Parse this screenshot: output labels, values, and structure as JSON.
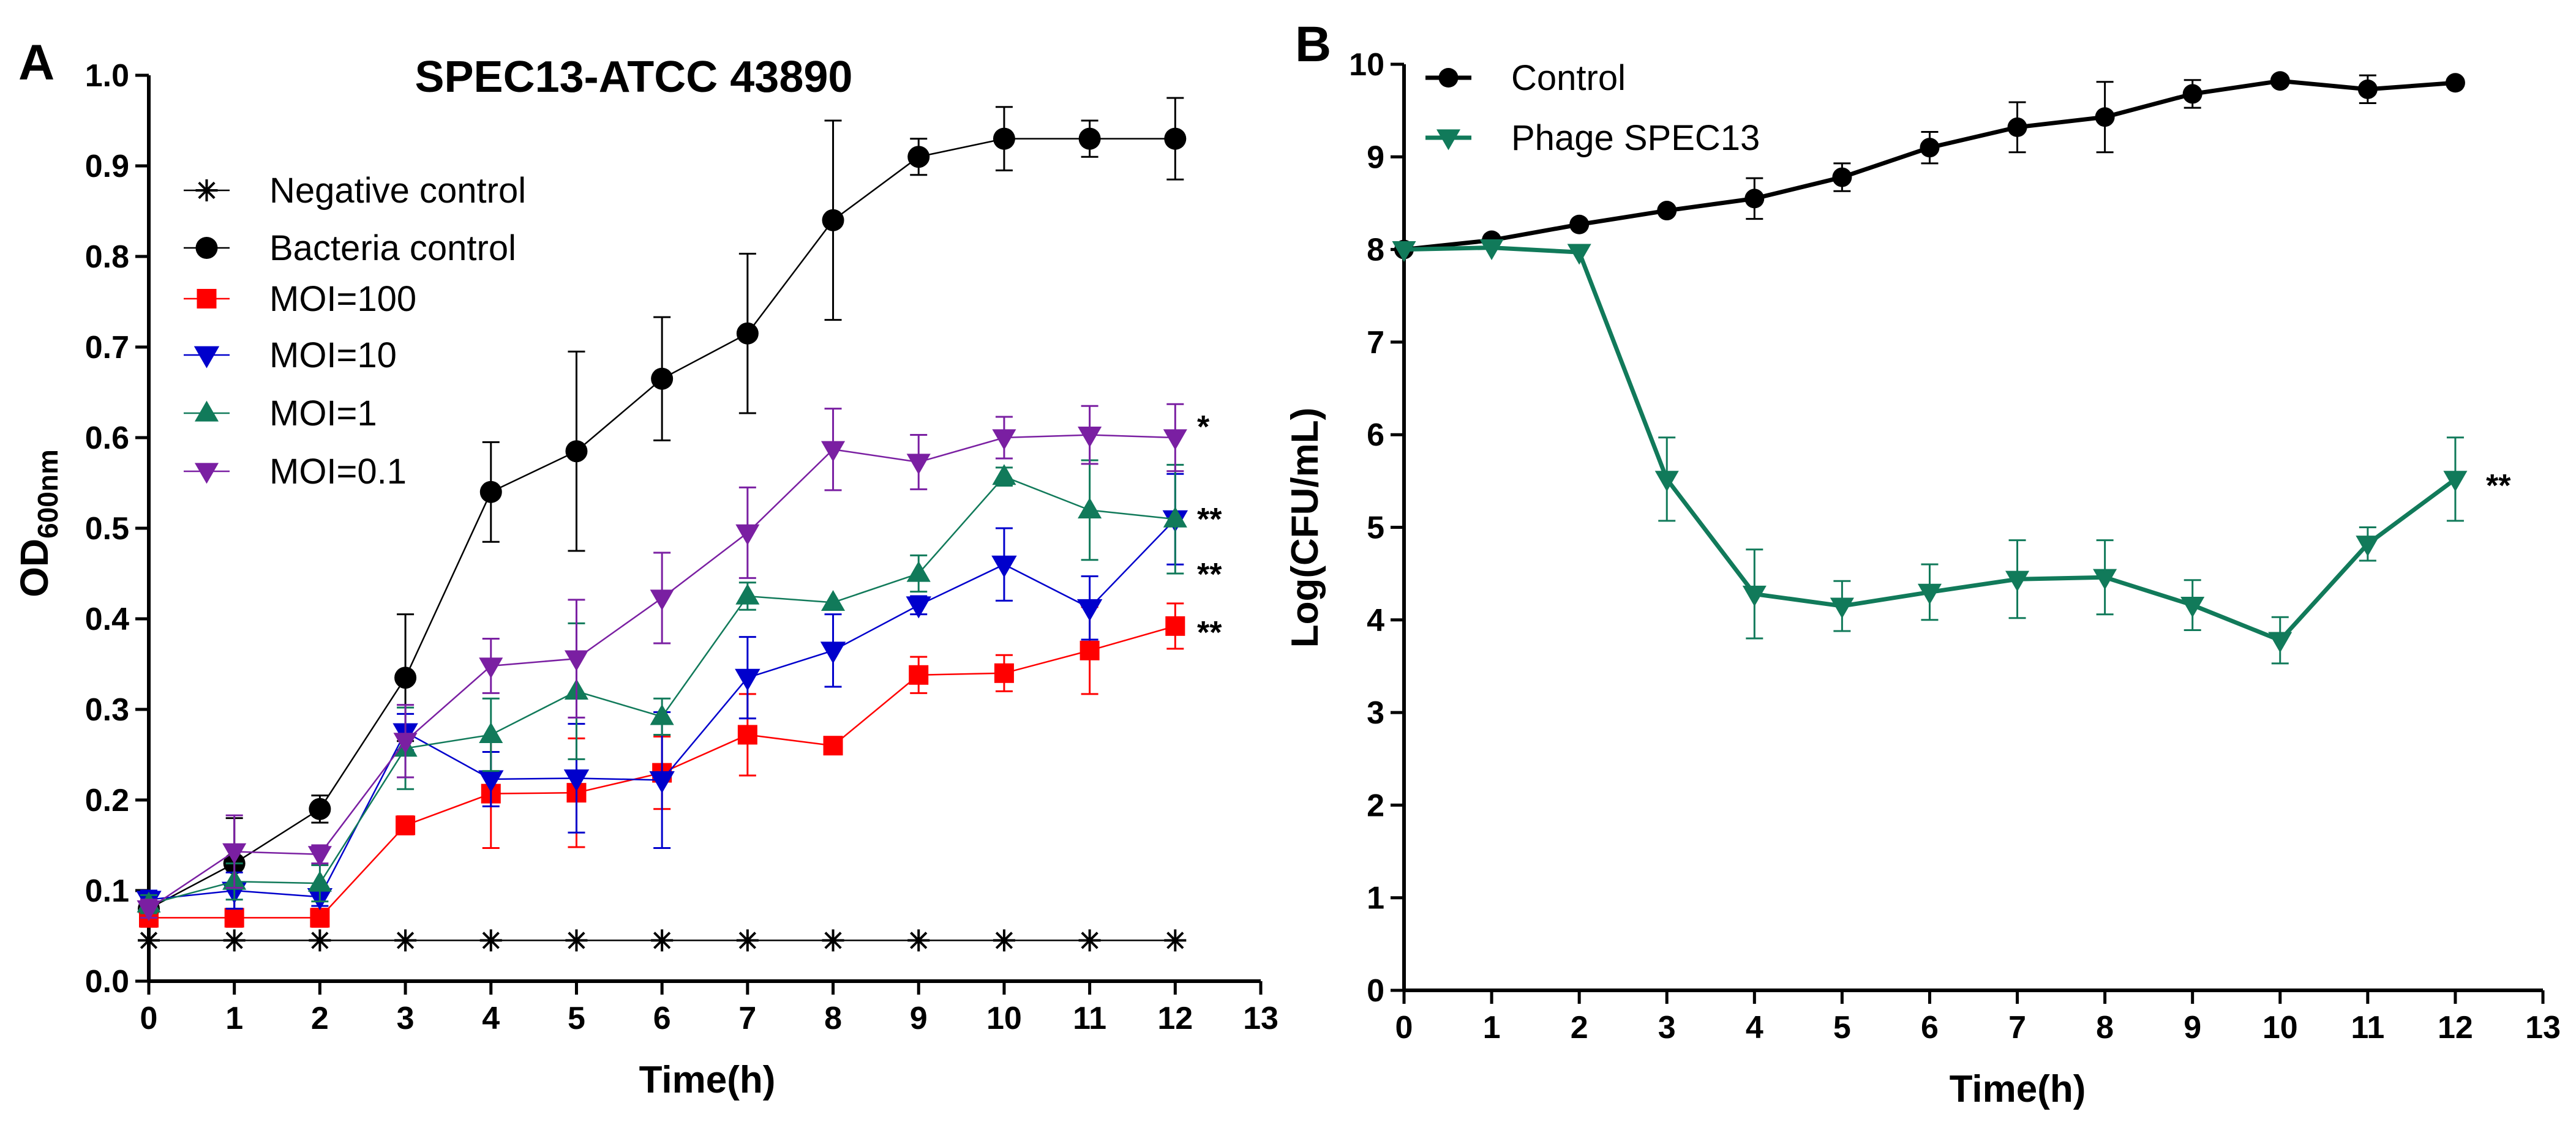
{
  "chart_data": [
    {
      "panel_label": "A",
      "type": "line",
      "title": "SPEC13-ATCC 43890",
      "xlabel": "Time(h)",
      "ylabel_main": "OD",
      "ylabel_sub": "600nm",
      "xlim": [
        0,
        13
      ],
      "ylim": [
        0,
        1.0
      ],
      "xticks": [
        0,
        1,
        2,
        3,
        4,
        5,
        6,
        7,
        8,
        9,
        10,
        11,
        12,
        13
      ],
      "yticks": [
        0.0,
        0.1,
        0.2,
        0.3,
        0.4,
        0.5,
        0.6,
        0.7,
        0.8,
        0.9,
        1.0
      ],
      "ytick_labels": [
        "0.0",
        "0.1",
        "0.2",
        "0.3",
        "0.4",
        "0.5",
        "0.6",
        "0.7",
        "0.8",
        "0.9",
        "1.0"
      ],
      "x": [
        0,
        1,
        2,
        3,
        4,
        5,
        6,
        7,
        8,
        9,
        10,
        11,
        12
      ],
      "legend_position": "top-left",
      "series": [
        {
          "name": "Negative control",
          "color": "#000000",
          "marker": "star",
          "values": [
            0.045,
            0.045,
            0.045,
            0.045,
            0.045,
            0.045,
            0.045,
            0.045,
            0.045,
            0.045,
            0.045,
            0.045,
            0.045
          ],
          "errors": [
            0,
            0,
            0,
            0,
            0,
            0,
            0,
            0,
            0,
            0,
            0,
            0,
            0
          ]
        },
        {
          "name": "Bacteria control",
          "color": "#000000",
          "marker": "circle",
          "values": [
            0.08,
            0.13,
            0.19,
            0.335,
            0.54,
            0.585,
            0.665,
            0.715,
            0.84,
            0.91,
            0.93,
            0.93,
            0.93
          ],
          "errors": [
            0.01,
            0.05,
            0.015,
            0.07,
            0.055,
            0.11,
            0.068,
            0.088,
            0.11,
            0.02,
            0.035,
            0.02,
            0.045
          ]
        },
        {
          "name": "MOI=100",
          "color": "#ff0000",
          "marker": "square",
          "values": [
            0.07,
            0.07,
            0.07,
            0.172,
            0.207,
            0.208,
            0.23,
            0.272,
            0.26,
            0.338,
            0.34,
            0.365,
            0.392
          ],
          "errors": [
            0.01,
            0.01,
            0.01,
            0.01,
            0.06,
            0.06,
            0.04,
            0.045,
            0,
            0.02,
            0.02,
            0.048,
            0.025
          ]
        },
        {
          "name": "MOI=10",
          "color": "#0000cc",
          "marker": "triangle-down",
          "values": [
            0.09,
            0.1,
            0.093,
            0.275,
            0.223,
            0.224,
            0.222,
            0.335,
            0.365,
            0.415,
            0.46,
            0.412,
            0.51
          ],
          "errors": [
            0.01,
            0.02,
            0.01,
            0.02,
            0.03,
            0.06,
            0.075,
            0.045,
            0.04,
            0.01,
            0.04,
            0.035,
            0.05
          ]
        },
        {
          "name": "MOI=1",
          "color": "#117a5a",
          "marker": "triangle-up",
          "values": [
            0.085,
            0.11,
            0.108,
            0.257,
            0.272,
            0.32,
            0.292,
            0.425,
            0.418,
            0.45,
            0.557,
            0.52,
            0.51
          ],
          "errors": [
            0.01,
            0.02,
            0.02,
            0.045,
            0.04,
            0.075,
            0.02,
            0.015,
            0,
            0.02,
            0.01,
            0.055,
            0.06
          ]
        },
        {
          "name": "MOI=0.1",
          "color": "#7a1fa2",
          "marker": "triangle-down",
          "values": [
            0.08,
            0.143,
            0.14,
            0.265,
            0.348,
            0.356,
            0.423,
            0.495,
            0.587,
            0.573,
            0.6,
            0.603,
            0.6
          ],
          "errors": [
            0.01,
            0.04,
            0.01,
            0.04,
            0.03,
            0.065,
            0.05,
            0.05,
            0.045,
            0.03,
            0.023,
            0.032,
            0.037
          ]
        }
      ],
      "annotations": [
        {
          "text": "*",
          "series": "MOI=0.1"
        },
        {
          "text": "**",
          "series": "MOI=1"
        },
        {
          "text": "**",
          "series": "MOI=10"
        },
        {
          "text": "**",
          "series": "MOI=100"
        }
      ]
    },
    {
      "panel_label": "B",
      "type": "line",
      "title": "",
      "xlabel": "Time(h)",
      "ylabel_main": "Log(CFU/mL)",
      "ylabel_sub": "",
      "xlim": [
        0,
        13
      ],
      "ylim": [
        0,
        10
      ],
      "xticks": [
        0,
        1,
        2,
        3,
        4,
        5,
        6,
        7,
        8,
        9,
        10,
        11,
        12,
        13
      ],
      "yticks": [
        0,
        1,
        2,
        3,
        4,
        5,
        6,
        7,
        8,
        9,
        10
      ],
      "ytick_labels": [
        "0",
        "1",
        "2",
        "3",
        "4",
        "5",
        "6",
        "7",
        "8",
        "9",
        "10"
      ],
      "x": [
        0,
        1,
        2,
        3,
        4,
        5,
        6,
        7,
        8,
        9,
        10,
        11,
        12
      ],
      "legend_position": "top-left",
      "series": [
        {
          "name": "Control",
          "color": "#000000",
          "marker": "circle",
          "values": [
            8.0,
            8.1,
            8.27,
            8.42,
            8.55,
            8.78,
            9.1,
            9.32,
            9.43,
            9.68,
            9.82,
            9.73,
            9.8
          ],
          "errors": [
            0,
            0,
            0,
            0,
            0.22,
            0.15,
            0.17,
            0.27,
            0.38,
            0.15,
            0,
            0.15,
            0
          ]
        },
        {
          "name": "Phage SPEC13",
          "color": "#117a5a",
          "marker": "triangle-down",
          "values": [
            8.0,
            8.02,
            7.97,
            5.52,
            4.28,
            4.15,
            4.3,
            4.44,
            4.46,
            4.16,
            3.78,
            4.82,
            5.52
          ],
          "errors": [
            0,
            0,
            0,
            0.45,
            0.48,
            0.27,
            0.3,
            0.42,
            0.4,
            0.27,
            0.25,
            0.18,
            0.45
          ]
        }
      ],
      "annotations": [
        {
          "text": "**",
          "series": "Phage SPEC13"
        }
      ]
    }
  ]
}
